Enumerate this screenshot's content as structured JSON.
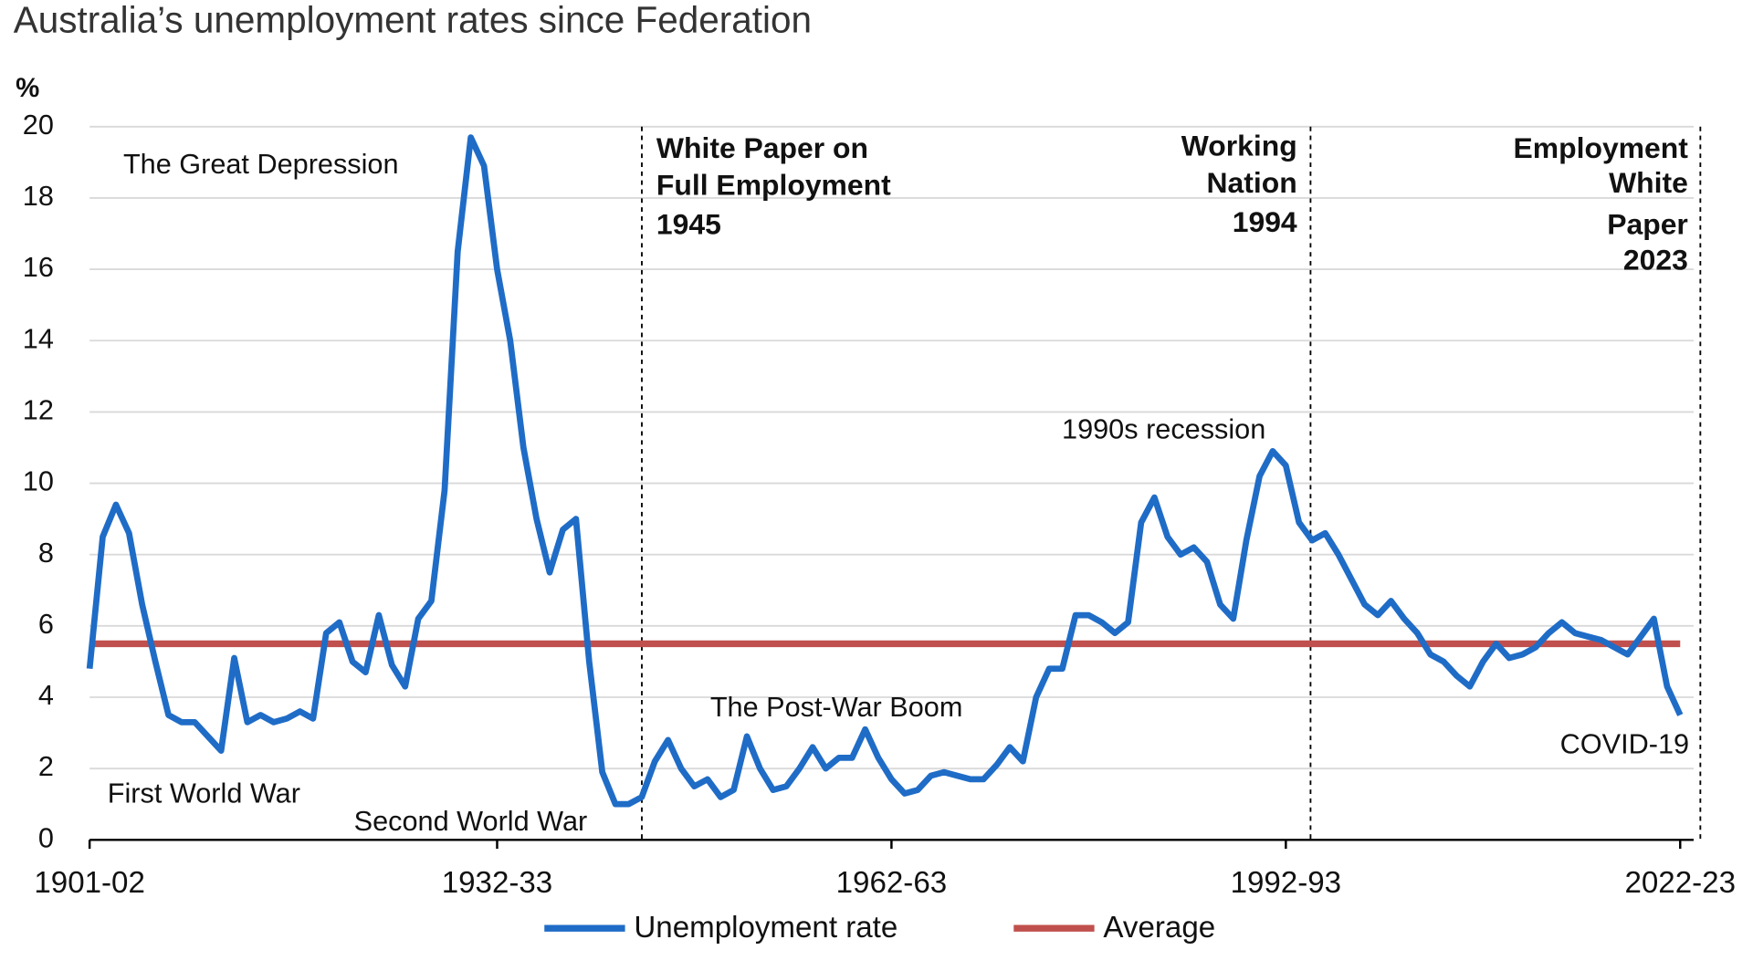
{
  "chart_data": {
    "type": "line",
    "title": "Australia’s unemployment rates since Federation",
    "y_axis_label": "%",
    "categories": [
      "1901-02",
      null,
      null,
      null,
      null,
      null,
      null,
      null,
      null,
      null,
      null,
      null,
      null,
      null,
      null,
      null,
      null,
      null,
      null,
      null,
      null,
      null,
      null,
      null,
      null,
      null,
      null,
      null,
      null,
      null,
      null,
      "1932-33",
      null,
      null,
      null,
      null,
      null,
      null,
      null,
      null,
      null,
      null,
      null,
      null,
      null,
      null,
      null,
      null,
      null,
      null,
      null,
      null,
      null,
      null,
      null,
      null,
      null,
      null,
      null,
      null,
      null,
      "1962-63",
      null,
      null,
      null,
      null,
      null,
      null,
      null,
      null,
      null,
      null,
      null,
      null,
      null,
      null,
      null,
      null,
      null,
      null,
      null,
      null,
      null,
      null,
      null,
      null,
      null,
      null,
      null,
      null,
      null,
      "1992-93",
      null,
      null,
      null,
      null,
      null,
      null,
      null,
      null,
      null,
      null,
      null,
      null,
      null,
      null,
      null,
      null,
      null,
      null,
      null,
      null,
      null,
      null,
      null,
      null,
      null,
      null,
      null,
      null,
      null,
      "2022-23"
    ],
    "series": [
      {
        "name": "Unemployment rate",
        "color": "#1f6cc7",
        "values": [
          4.8,
          8.5,
          9.4,
          8.6,
          6.6,
          5.0,
          3.5,
          3.3,
          3.3,
          2.9,
          2.5,
          5.1,
          3.3,
          3.5,
          3.3,
          3.4,
          3.6,
          3.4,
          5.8,
          6.1,
          5.0,
          4.7,
          6.3,
          4.9,
          4.3,
          6.2,
          6.7,
          9.8,
          16.5,
          19.7,
          18.9,
          16.0,
          14.0,
          11.0,
          9.0,
          7.5,
          8.7,
          9.0,
          5.0,
          1.9,
          1.0,
          1.0,
          1.2,
          2.2,
          2.8,
          2.0,
          1.5,
          1.7,
          1.2,
          1.4,
          2.9,
          2.0,
          1.4,
          1.5,
          2.0,
          2.6,
          2.0,
          2.3,
          2.3,
          3.1,
          2.3,
          1.7,
          1.3,
          1.4,
          1.8,
          1.9,
          1.8,
          1.7,
          1.7,
          2.1,
          2.6,
          2.2,
          4.0,
          4.8,
          4.8,
          6.3,
          6.3,
          6.1,
          5.8,
          6.1,
          8.9,
          9.6,
          8.5,
          8.0,
          8.2,
          7.8,
          6.6,
          6.2,
          8.4,
          10.2,
          10.9,
          10.5,
          8.9,
          8.4,
          8.6,
          8.0,
          7.3,
          6.6,
          6.3,
          6.7,
          6.2,
          5.8,
          5.2,
          5.0,
          4.6,
          4.3,
          5.0,
          5.5,
          5.1,
          5.2,
          5.4,
          5.8,
          6.1,
          5.8,
          5.7,
          5.6,
          5.4,
          5.2,
          5.7,
          6.2,
          4.3,
          3.5
        ]
      },
      {
        "name": "Average",
        "color": "#c0504d",
        "value": 5.5
      }
    ],
    "ylim": [
      0,
      20
    ],
    "yticks": [
      0,
      2,
      4,
      6,
      8,
      10,
      12,
      14,
      16,
      18,
      20
    ],
    "grid": true,
    "legend": "bottom",
    "annotations": [
      "The Great Depression",
      "First World War",
      "Second World War",
      "The Post-War Boom",
      "1990s recession",
      "COVID-19"
    ],
    "policy_markers": [
      {
        "lines": [
          "White Paper on",
          "Full Employment",
          "1945"
        ]
      },
      {
        "lines": [
          "Working",
          "Nation",
          "1994"
        ]
      },
      {
        "lines": [
          "Employment",
          "White",
          "Paper",
          "2023"
        ]
      }
    ]
  }
}
